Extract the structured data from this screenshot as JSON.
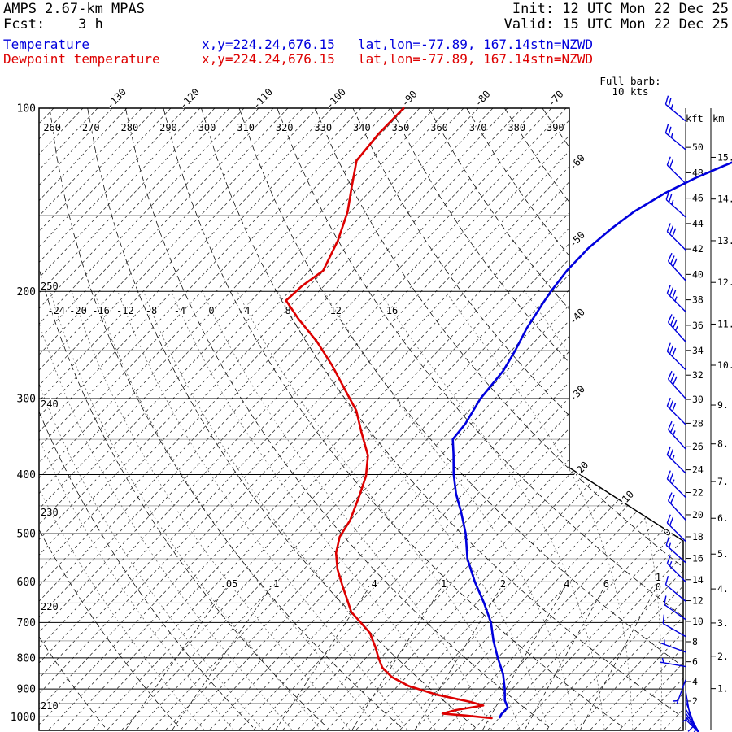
{
  "header": {
    "model": "AMPS 2.67-km MPAS",
    "fcst": "Fcst:    3 h",
    "init": "Init: 12 UTC Mon 22 Dec 25",
    "valid": "Valid: 15 UTC Mon 22 Dec 25"
  },
  "legend": {
    "temperature": {
      "label": "Temperature",
      "xy": "x,y=224.24,676.15",
      "latlon": "lat,lon=-77.89, 167.14",
      "stn": "stn=NZWD"
    },
    "dewpoint": {
      "label": "Dewpoint temperature",
      "xy": "x,y=224.24,676.15",
      "latlon": "lat,lon=-77.89, 167.14",
      "stn": "stn=NZWD"
    }
  },
  "wind_legend": {
    "line1": "Full barb:",
    "line2": "10 kts"
  },
  "colors": {
    "temperature": "#0000dd",
    "dewpoint": "#dd0000",
    "grid": "#000000",
    "minor_isobar": "#aaaaaa",
    "moist": "#555555"
  },
  "chart_data": {
    "type": "line",
    "title": "AMPS 2.67-km MPAS skew-T/log-p sounding, station NZWD",
    "station": "NZWD",
    "pressure_axis_hPa": [
      100,
      200,
      300,
      400,
      500,
      600,
      700,
      800,
      900,
      1000
    ],
    "pressure_minor_hPa": [
      150,
      250,
      350,
      450,
      550,
      650,
      750,
      850,
      950
    ],
    "isotherms_C": {
      "min": -140,
      "max": 30,
      "step": 2,
      "labels_top": [
        -130,
        -120,
        -110,
        -100,
        -90,
        -80,
        -70
      ],
      "labels_right": [
        -60,
        -50,
        -40,
        -30
      ],
      "labels_diagonal": [
        -20,
        -10,
        0
      ]
    },
    "dry_adiabats_K": [
      210,
      220,
      230,
      240,
      250,
      260,
      270,
      280,
      290,
      300,
      310,
      320,
      330,
      340,
      350,
      360,
      370,
      380,
      390
    ],
    "theta_top_labels_K": [
      260,
      270,
      280,
      290,
      300,
      310,
      320,
      330,
      340,
      350,
      360,
      370,
      380,
      390
    ],
    "theta_left_labels": [
      {
        "value": 250,
        "y": 352
      },
      {
        "value": 240,
        "y": 497
      },
      {
        "value": 230,
        "y": 630
      },
      {
        "value": 220,
        "y": 746
      },
      {
        "value": 210,
        "y": 868
      }
    ],
    "moist_adiabats_C": {
      "drawn": [
        -40,
        -36,
        -32,
        -28,
        -24,
        -20,
        -16,
        -12,
        -8,
        -4,
        0,
        4,
        8,
        12,
        16,
        20,
        24,
        28
      ],
      "labeled": [
        -24,
        -20,
        -16,
        -12,
        -8,
        -4,
        0,
        4,
        8,
        12,
        16
      ]
    },
    "mixing_ratio_g_kg": [
      0.05,
      0.1,
      0.4,
      1,
      2,
      4,
      6,
      10
    ],
    "series": [
      {
        "name": "Temperature",
        "color": "#0000dd",
        "points_hPa_C": [
          [
            1002,
            2.0
          ],
          [
            990,
            1.8
          ],
          [
            965,
            1.8
          ],
          [
            940,
            0.5
          ],
          [
            900,
            -1.0
          ],
          [
            850,
            -3.2
          ],
          [
            800,
            -6.0
          ],
          [
            750,
            -8.8
          ],
          [
            700,
            -11.5
          ],
          [
            650,
            -15.0
          ],
          [
            600,
            -19.0
          ],
          [
            550,
            -23.0
          ],
          [
            500,
            -26.5
          ],
          [
            460,
            -30.0
          ],
          [
            430,
            -33.0
          ],
          [
            400,
            -35.8
          ],
          [
            370,
            -38.5
          ],
          [
            350,
            -40.5
          ],
          [
            330,
            -40.8
          ],
          [
            300,
            -42.0
          ],
          [
            270,
            -42.5
          ],
          [
            250,
            -43.5
          ],
          [
            230,
            -44.8
          ],
          [
            210,
            -45.8
          ],
          [
            200,
            -46.3
          ],
          [
            185,
            -46.8
          ],
          [
            170,
            -46.8
          ],
          [
            158,
            -46.2
          ],
          [
            148,
            -45.3
          ],
          [
            138,
            -43.5
          ],
          [
            130,
            -41.2
          ],
          [
            124,
            -38.8
          ],
          [
            121,
            -37.5
          ]
        ]
      },
      {
        "name": "Dewpoint temperature",
        "color": "#dd0000",
        "points_hPa_C": [
          [
            1005,
            1.0
          ],
          [
            995,
            -3.0
          ],
          [
            988,
            -6.3
          ],
          [
            975,
            -5.0
          ],
          [
            958,
            -1.8
          ],
          [
            945,
            -4.0
          ],
          [
            920,
            -9.5
          ],
          [
            890,
            -14.5
          ],
          [
            860,
            -18.0
          ],
          [
            830,
            -20.5
          ],
          [
            800,
            -22.3
          ],
          [
            770,
            -24.0
          ],
          [
            728,
            -26.7
          ],
          [
            700,
            -29.3
          ],
          [
            672,
            -32.0
          ],
          [
            645,
            -33.9
          ],
          [
            610,
            -36.5
          ],
          [
            572,
            -39.4
          ],
          [
            538,
            -41.7
          ],
          [
            506,
            -43.3
          ],
          [
            476,
            -44.0
          ],
          [
            434,
            -45.9
          ],
          [
            402,
            -47.6
          ],
          [
            372,
            -50.0
          ],
          [
            340,
            -54.0
          ],
          [
            314,
            -57.4
          ],
          [
            291,
            -61.5
          ],
          [
            265,
            -66.5
          ],
          [
            242,
            -71.7
          ],
          [
            222,
            -77.2
          ],
          [
            207,
            -81.3
          ],
          [
            196,
            -81.0
          ],
          [
            185,
            -80.1
          ],
          [
            165,
            -82.0
          ],
          [
            148,
            -84.4
          ],
          [
            135,
            -87.0
          ],
          [
            122,
            -89.8
          ],
          [
            110,
            -90.3
          ],
          [
            100,
            -90.2
          ]
        ]
      }
    ],
    "wind_barbs": [
      {
        "p": 105,
        "dir": 310,
        "spd": 25
      },
      {
        "p": 117,
        "dir": 310,
        "spd": 25
      },
      {
        "p": 133,
        "dir": 315,
        "spd": 20
      },
      {
        "p": 151,
        "dir": 312,
        "spd": 25
      },
      {
        "p": 171,
        "dir": 315,
        "spd": 30
      },
      {
        "p": 192,
        "dir": 318,
        "spd": 30
      },
      {
        "p": 216,
        "dir": 315,
        "spd": 35
      },
      {
        "p": 242,
        "dir": 318,
        "spd": 35
      },
      {
        "p": 269,
        "dir": 315,
        "spd": 30
      },
      {
        "p": 300,
        "dir": 318,
        "spd": 30
      },
      {
        "p": 331,
        "dir": 315,
        "spd": 30
      },
      {
        "p": 363,
        "dir": 318,
        "spd": 25
      },
      {
        "p": 398,
        "dir": 315,
        "spd": 25
      },
      {
        "p": 436,
        "dir": 315,
        "spd": 25
      },
      {
        "p": 475,
        "dir": 318,
        "spd": 20
      },
      {
        "p": 515,
        "dir": 315,
        "spd": 20
      },
      {
        "p": 558,
        "dir": 312,
        "spd": 15
      },
      {
        "p": 600,
        "dir": 315,
        "spd": 15
      },
      {
        "p": 646,
        "dir": 310,
        "spd": 10
      },
      {
        "p": 692,
        "dir": 305,
        "spd": 10
      },
      {
        "p": 738,
        "dir": 300,
        "spd": 10
      },
      {
        "p": 783,
        "dir": 290,
        "spd": 5
      },
      {
        "p": 827,
        "dir": 280,
        "spd": 5
      },
      {
        "p": 869,
        "dir": 200,
        "spd": 5
      },
      {
        "p": 907,
        "dir": 170,
        "spd": 10
      },
      {
        "p": 941,
        "dir": 160,
        "spd": 15
      },
      {
        "p": 971,
        "dir": 150,
        "spd": 15
      },
      {
        "p": 986,
        "dir": 145,
        "spd": 20
      },
      {
        "p": 999,
        "dir": 140,
        "spd": 20
      },
      {
        "p": 1010,
        "dir": 135,
        "spd": 15
      }
    ],
    "height_axes": {
      "kft": {
        "label": "kft",
        "ticks": [
          2,
          4,
          6,
          8,
          10,
          12,
          14,
          16,
          18,
          20,
          22,
          24,
          26,
          28,
          30,
          32,
          34,
          36,
          38,
          40,
          42,
          44,
          46,
          48,
          50
        ]
      },
      "km": {
        "label": "km",
        "ticks": [
          1,
          2,
          3,
          4,
          5,
          6,
          7,
          8,
          9,
          10,
          11,
          12,
          13,
          14,
          15
        ]
      }
    }
  }
}
